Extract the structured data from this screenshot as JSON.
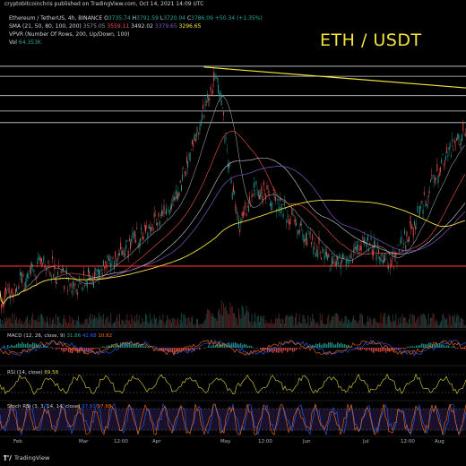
{
  "header": {
    "published": "cryptobitcoinchris published on TradingView.com, Oct 14, 2021 14:09 UTC",
    "symbol_line": "Ethereum / TetherUS, 4h, BINANCE",
    "ohlc": {
      "o_label": "O",
      "o": "3735.74",
      "h_label": "H",
      "h": "3791.59",
      "l_label": "L",
      "l": "3720.04",
      "c_label": "C",
      "c": "3786.09",
      "chg": "+50.34 (+1.35%)"
    },
    "sma_label": "SMA (21, 50, 80, 100, 200)",
    "sma_values": [
      "3575.05",
      "3559.11",
      "3492.02",
      "3379.65",
      "3296.65"
    ],
    "vpvr_label": "VPVR (Number Of Rows, 200, Up/Down, 100)",
    "vol_label": "Vol",
    "vol_value": "64.353K",
    "big_title": "ETH / USDT"
  },
  "indicators": {
    "macd_label": "MACD (12, 26, close, 9)",
    "macd_values": [
      "31.86",
      "42.68",
      "10.82"
    ],
    "rsi_label": "RSI (14, close)",
    "rsi_value": "69.58",
    "stoch_label": "Stoch RSI (3, 3, 14, 14, close)",
    "stoch_values": [
      "97.83",
      "97.88"
    ]
  },
  "colors": {
    "candle_up": "#26a69a",
    "candle_down": "#ef5350",
    "trendline": "#f3e33a",
    "sma200": "#f3e33a",
    "support": "#ff2a2a",
    "resistance": "#d1d4dc",
    "macd": "#2962ff",
    "signal": "#ff6d00",
    "rsi": "#e8d83c",
    "stoch_k": "#2962ff",
    "stoch_d": "#ff6d00"
  },
  "footer": {
    "brand": "TradingView"
  },
  "chart_data": {
    "type": "candlestick",
    "symbol": "Ethereum / TetherUS",
    "interval": "4h",
    "exchange": "BINANCE",
    "x_labels": [
      "Feb",
      "Mar",
      "12:00",
      "Apr",
      "May",
      "12:00",
      "Jun",
      "Jul",
      "12:00",
      "Aug"
    ],
    "price_path_days": [
      0,
      20,
      35,
      50,
      65,
      80,
      92,
      100,
      106,
      110,
      118,
      128,
      140,
      155,
      168,
      180,
      192,
      205,
      215
    ],
    "price_path_values": [
      1350,
      1850,
      1500,
      1800,
      2200,
      2600,
      3600,
      4300,
      3000,
      2300,
      2800,
      2600,
      2200,
      1800,
      2100,
      1800,
      2400,
      3200,
      3550
    ],
    "horizontal_lines": [
      4380,
      4250,
      4000,
      3800,
      3650,
      1790
    ],
    "trendline": {
      "from": {
        "day": 94,
        "value": 4370
      },
      "to": {
        "day": 215,
        "value": 4100
      }
    },
    "ylim": [
      1000,
      4600
    ],
    "xlim": [
      0,
      215
    ]
  }
}
